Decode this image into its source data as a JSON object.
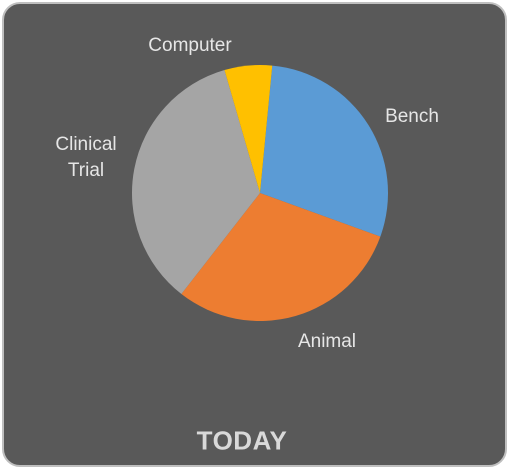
{
  "chart_data": {
    "type": "pie",
    "title": "TODAY",
    "categories": [
      "Bench",
      "Animal",
      "Clinical Trial",
      "Computer"
    ],
    "values": [
      29,
      30,
      35,
      6
    ],
    "colors": [
      "#5b9bd5",
      "#ed7d31",
      "#a5a5a5",
      "#ffc000"
    ]
  }
}
